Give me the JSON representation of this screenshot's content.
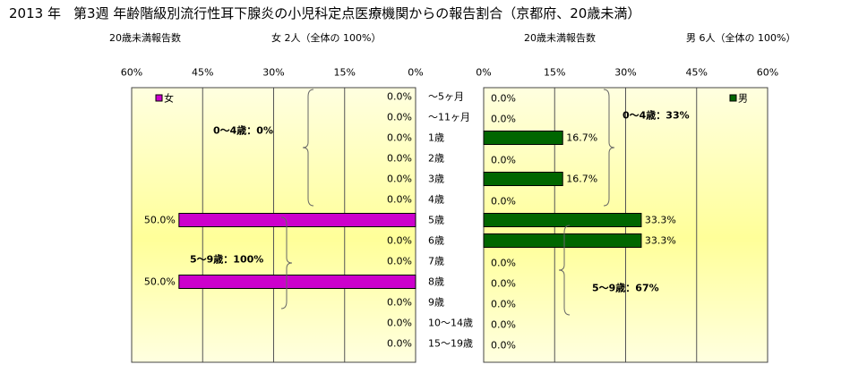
{
  "header": {
    "year": "2013 年",
    "title": "第3週 年齢階級別流行性耳下腺炎の小児科定点医療機関からの報告割合（京都府、20歳未満）"
  },
  "subtitles": {
    "female_count": "20歳未満報告数",
    "female_total": "女 2人（全体の 100%）",
    "male_count": "20歳未満報告数",
    "male_total": "男 6人（全体の 100%）"
  },
  "colors": {
    "female": "#cc00cc",
    "male": "#006600",
    "bg_top": "#ffffe0",
    "bg_mid": "#ffff99"
  },
  "chart_data": {
    "type": "bar",
    "categories": [
      "～5ヶ月",
      "～11ヶ月",
      "1歳",
      "2歳",
      "3歳",
      "4歳",
      "5歳",
      "6歳",
      "7歳",
      "8歳",
      "9歳",
      "10～14歳",
      "15～19歳"
    ],
    "series": [
      {
        "name": "女",
        "values": [
          0,
          0,
          0,
          0,
          0,
          0,
          50,
          0,
          0,
          50,
          0,
          0,
          0
        ],
        "labels": [
          "0.0%",
          "0.0%",
          "0.0%",
          "0.0%",
          "0.0%",
          "0.0%",
          "50.0%",
          "0.0%",
          "0.0%",
          "50.0%",
          "0.0%",
          "0.0%",
          "0.0%"
        ]
      },
      {
        "name": "男",
        "values": [
          0,
          0,
          16.7,
          0,
          16.7,
          0,
          33.3,
          33.3,
          0,
          0,
          0,
          0,
          0
        ],
        "labels": [
          "0.0%",
          "0.0%",
          "16.7%",
          "0.0%",
          "16.7%",
          "0.0%",
          "33.3%",
          "33.3%",
          "0.0%",
          "0.0%",
          "0.0%",
          "0.0%",
          "0.0%"
        ]
      }
    ],
    "ylim": [
      0,
      60
    ],
    "female_ticks": [
      "60%",
      "45%",
      "30%",
      "15%",
      "0%"
    ],
    "male_ticks": [
      "0%",
      "15%",
      "30%",
      "45%",
      "60%"
    ],
    "annotations": {
      "female_0_4": "0～4歳：0%",
      "female_5_9": "5～9歳：100%",
      "male_0_4": "0～4歳：33%",
      "male_5_9": "5～9歳：67%"
    }
  }
}
